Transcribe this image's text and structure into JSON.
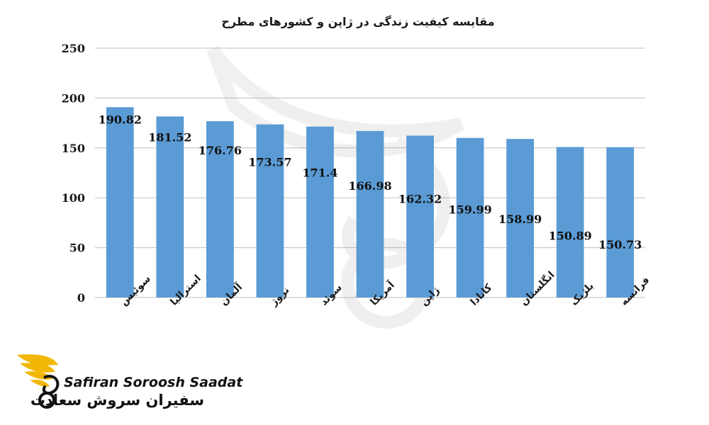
{
  "chart_data": {
    "type": "bar",
    "title": "مقایسه کیفیت زندگی در ژاپن و کشورهای مطرح",
    "categories": [
      "سوئیس",
      "استرالیا",
      "آلمان",
      "نروژ",
      "سوئد",
      "آمریکا",
      "ژاپن",
      "کانادا",
      "انگلستان",
      "بلژیک",
      "فرانسه"
    ],
    "values": [
      190.82,
      181.52,
      176.76,
      173.57,
      171.4,
      166.98,
      162.32,
      159.99,
      158.99,
      150.89,
      150.73
    ],
    "value_labels": [
      "190.82",
      "181.52",
      "176.76",
      "173.57",
      "171.4",
      "166.98",
      "162.32",
      "159.99",
      "158.99",
      "150.89",
      "150.73"
    ],
    "yticks": [
      0,
      50,
      100,
      150,
      200,
      250
    ],
    "ylim": [
      0,
      250
    ],
    "grid": true,
    "legend": "none",
    "bar_color": "#5B9BD5",
    "grid_color": "#BFBFBF"
  },
  "logo": {
    "brand_en": "Safiran Soroosh Saadat",
    "brand_fa": "سفیران سروش سعادت",
    "accent_color": "#F2B705"
  }
}
